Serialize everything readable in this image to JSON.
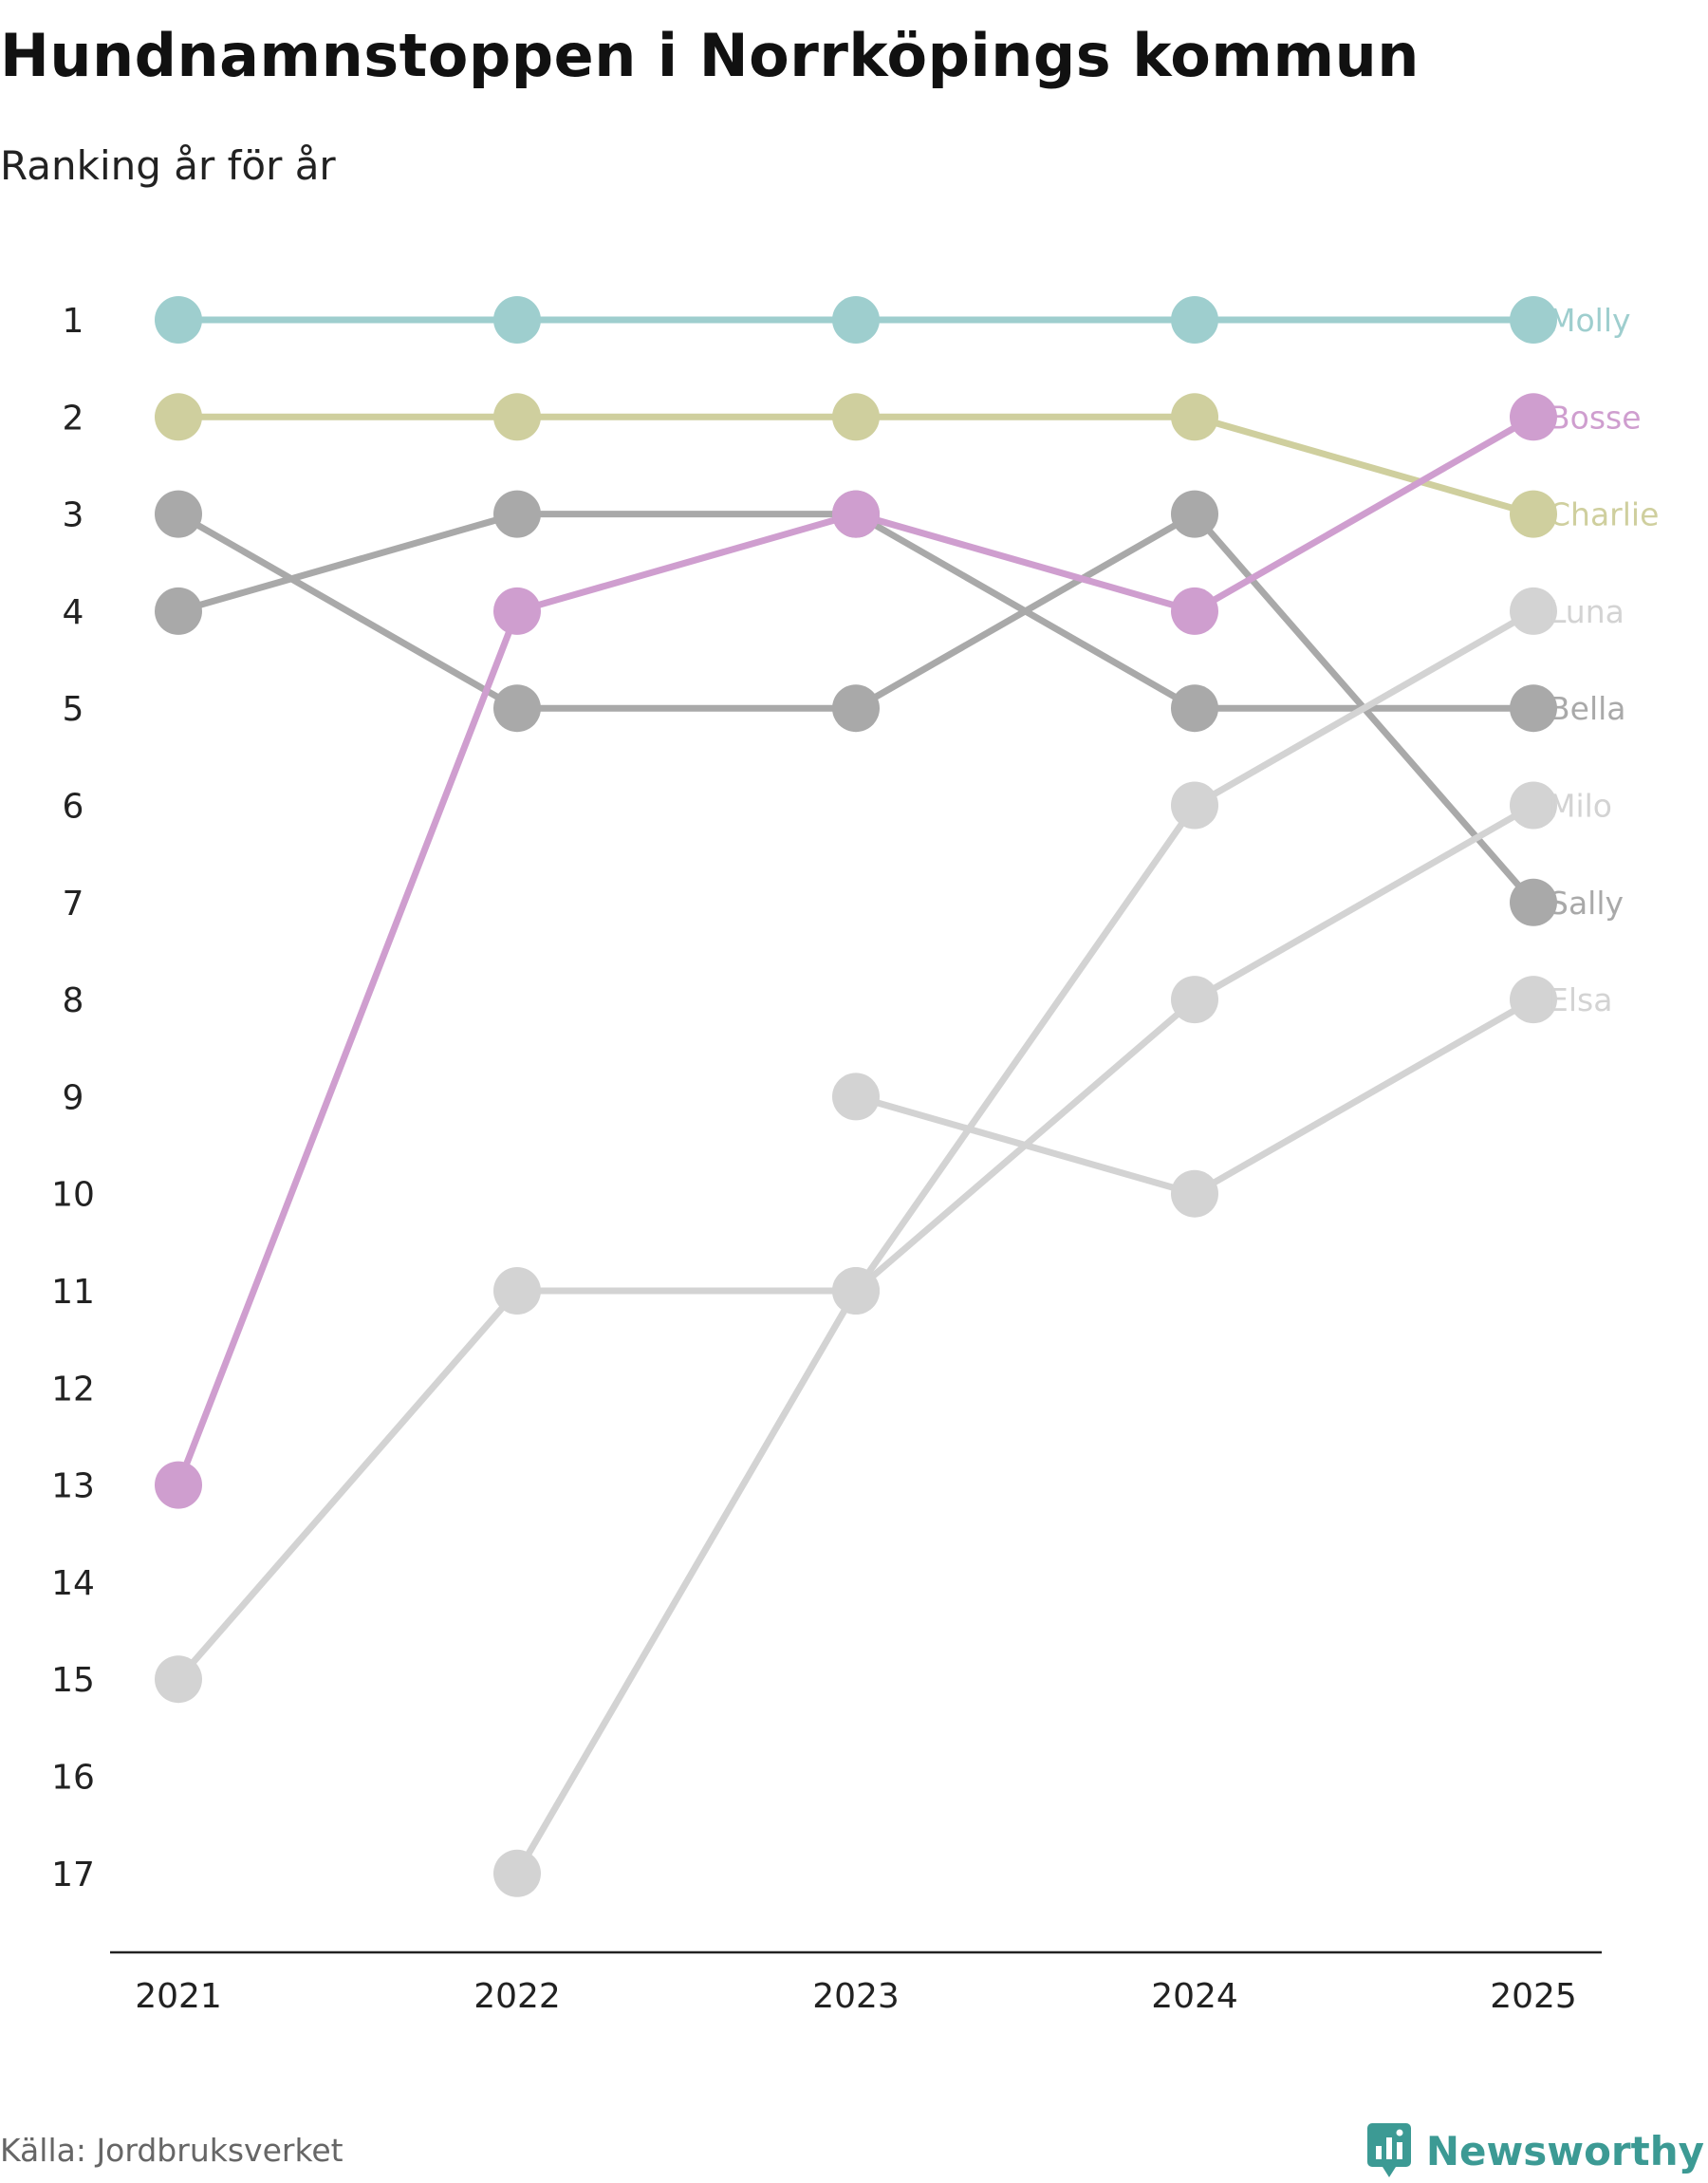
{
  "title": "Hundnamnstoppen i Norrköpings kommun",
  "subtitle": "Ranking år för år",
  "source": "Källa: Jordbruksverket",
  "brand": {
    "name": "Newsworthy",
    "icon": "newsworthy-logo-icon",
    "color": "#3c9a94"
  },
  "chart_data": {
    "type": "line",
    "title": "Hundnamnstoppen i Norrköpings kommun",
    "subtitle": "Ranking år för år",
    "x": [
      "2021",
      "2022",
      "2023",
      "2024",
      "2025"
    ],
    "xlabel": "",
    "ylabel": "",
    "ylim": [
      1,
      17
    ],
    "y_inverted": true,
    "y_ticks": [
      "1",
      "2",
      "3",
      "4",
      "5",
      "6",
      "7",
      "8",
      "9",
      "10",
      "11",
      "12",
      "13",
      "14",
      "15",
      "16",
      "17"
    ],
    "grid": false,
    "series": [
      {
        "name": "Sally",
        "color": "#a9a9a9",
        "values": [
          3,
          5,
          5,
          3,
          7
        ]
      },
      {
        "name": "Bella",
        "color": "#a9a9a9",
        "values": [
          4,
          3,
          3,
          5,
          5
        ]
      },
      {
        "name": "Luna",
        "color": "#d3d3d3",
        "values": [
          null,
          17,
          11,
          6,
          4
        ]
      },
      {
        "name": "Milo",
        "color": "#d3d3d3",
        "values": [
          15,
          11,
          11,
          8,
          6
        ]
      },
      {
        "name": "Elsa",
        "color": "#d3d3d3",
        "values": [
          null,
          null,
          9,
          10,
          8
        ]
      },
      {
        "name": "Charlie",
        "color": "#cfcf9e",
        "values": [
          2,
          2,
          2,
          2,
          3
        ]
      },
      {
        "name": "Molly",
        "color": "#9ecece",
        "values": [
          1,
          1,
          1,
          1,
          1
        ]
      },
      {
        "name": "Bosse",
        "color": "#cf9ecf",
        "values": [
          13,
          4,
          3,
          4,
          2
        ]
      }
    ]
  }
}
